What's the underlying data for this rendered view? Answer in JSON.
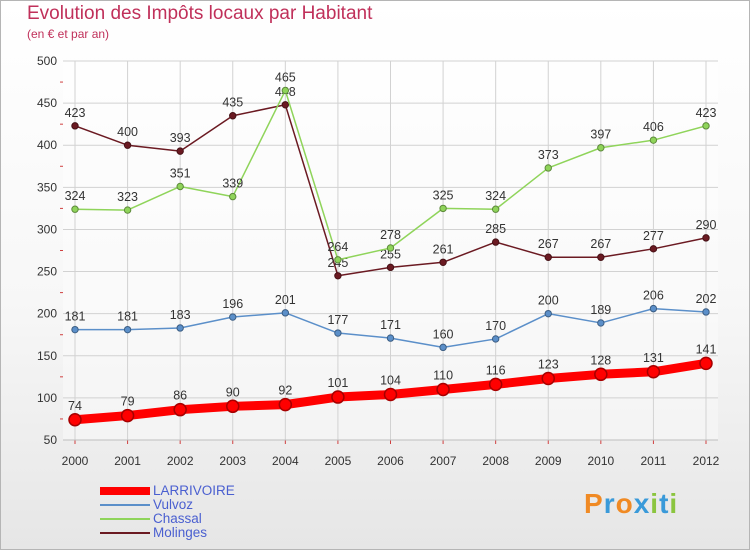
{
  "chart_data": {
    "type": "line",
    "title": "Evolution des Impôts locaux par Habitant",
    "subtitle": "(en € et par an)",
    "x": [
      "2000",
      "2001",
      "2002",
      "2003",
      "2004",
      "2005",
      "2006",
      "2007",
      "2008",
      "2009",
      "2010",
      "2011",
      "2012"
    ],
    "ylim": [
      50,
      500
    ],
    "yticks": [
      50,
      100,
      150,
      200,
      250,
      300,
      350,
      400,
      450,
      500
    ],
    "grid": true,
    "legend_position": "bottom-left",
    "series": [
      {
        "name": "LARRIVOIRE",
        "color": "#ff0000",
        "values": [
          74,
          79,
          86,
          90,
          92,
          101,
          104,
          110,
          116,
          123,
          128,
          131,
          141
        ]
      },
      {
        "name": "Vulvoz",
        "color": "#5b8fc9",
        "values": [
          181,
          181,
          183,
          196,
          201,
          177,
          171,
          160,
          170,
          200,
          189,
          206,
          202
        ]
      },
      {
        "name": "Chassal",
        "color": "#8fd45a",
        "values": [
          324,
          323,
          351,
          339,
          465,
          264,
          278,
          325,
          324,
          373,
          397,
          406,
          423
        ]
      },
      {
        "name": "Molinges",
        "color": "#6b1a22",
        "values": [
          423,
          400,
          393,
          435,
          448,
          245,
          255,
          261,
          285,
          267,
          267,
          277,
          290
        ]
      }
    ]
  },
  "logo": {
    "text": "Proxiti",
    "colors": [
      "#f08a24",
      "#3a9ad9",
      "#f08a24",
      "#3a9ad9",
      "#8bc53f",
      "#3a9ad9",
      "#8bc53f"
    ]
  }
}
